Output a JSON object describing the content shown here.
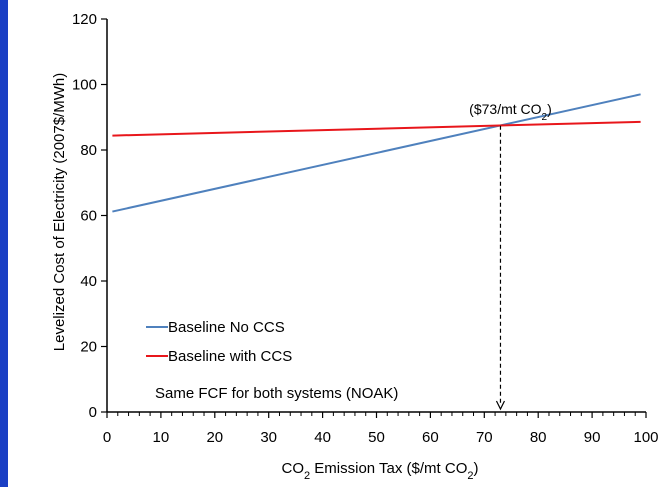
{
  "chart_data": {
    "type": "line",
    "xlabel": "CO2  Emission Tax ($/mt CO2)",
    "ylabel": "Levelized Cost of Electricity (2007$/MWh)",
    "xlim": [
      0,
      100
    ],
    "ylim": [
      0,
      120
    ],
    "x_ticks": [
      "0",
      "10",
      "20",
      "30",
      "40",
      "50",
      "60",
      "70",
      "80",
      "90",
      "100"
    ],
    "y_ticks": [
      "0",
      "20",
      "40",
      "60",
      "80",
      "100",
      "120"
    ],
    "grid": false,
    "legend_position": "bottom-left",
    "series": [
      {
        "name": "Baseline No CCS",
        "color": "#4f81bd",
        "x": [
          1,
          99
        ],
        "y": [
          61.2,
          97.0
        ]
      },
      {
        "name": "Baseline with CCS",
        "color": "#e8161b",
        "x": [
          1,
          99
        ],
        "y": [
          84.4,
          88.6
        ]
      }
    ],
    "annotations": {
      "crossover_label": "($73/mt CO2)",
      "crossover_x": 73,
      "crossover_y": 87.4,
      "note": "Same FCF for both systems (NOAK)"
    }
  }
}
